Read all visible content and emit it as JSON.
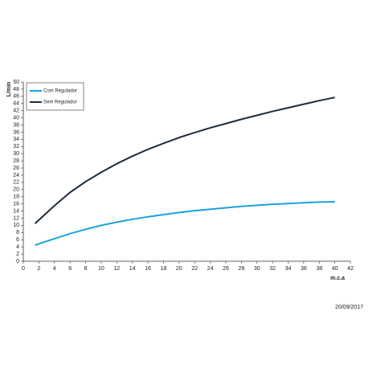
{
  "chart_data": {
    "type": "line",
    "y_label": "L/min",
    "x_label": "m.c.a",
    "date": "20/09/2017",
    "x": [
      1.5,
      4,
      6,
      8,
      10,
      12,
      14,
      16,
      18,
      20,
      22,
      24,
      26,
      28,
      30,
      32,
      34,
      36,
      38,
      40
    ],
    "series": [
      {
        "name": "Com Regulador",
        "color": "#1aa3dc",
        "values": [
          4.5,
          6.3,
          7.7,
          8.9,
          10,
          10.9,
          11.7,
          12.4,
          13,
          13.6,
          14.1,
          14.5,
          14.9,
          15.3,
          15.6,
          15.9,
          16.1,
          16.3,
          16.5,
          16.6
        ]
      },
      {
        "name": "Sem Regulador",
        "color": "#1f2d3d",
        "values": [
          10.5,
          15.5,
          19.2,
          22.2,
          24.8,
          27.2,
          29.3,
          31.2,
          32.9,
          34.5,
          35.9,
          37.2,
          38.4,
          39.6,
          40.7,
          41.8,
          42.8,
          43.8,
          44.8,
          45.7
        ]
      }
    ],
    "xlim": [
      0,
      42
    ],
    "xticks": [
      0,
      2,
      4,
      6,
      8,
      10,
      12,
      14,
      16,
      18,
      20,
      22,
      24,
      26,
      28,
      30,
      32,
      34,
      36,
      38,
      40,
      42
    ],
    "ylim": [
      0,
      50
    ],
    "yticks": [
      0,
      2,
      4,
      6,
      8,
      10,
      12,
      14,
      16,
      18,
      20,
      22,
      24,
      26,
      28,
      30,
      32,
      34,
      36,
      38,
      40,
      42,
      44,
      46,
      48,
      50
    ],
    "grid": false
  }
}
